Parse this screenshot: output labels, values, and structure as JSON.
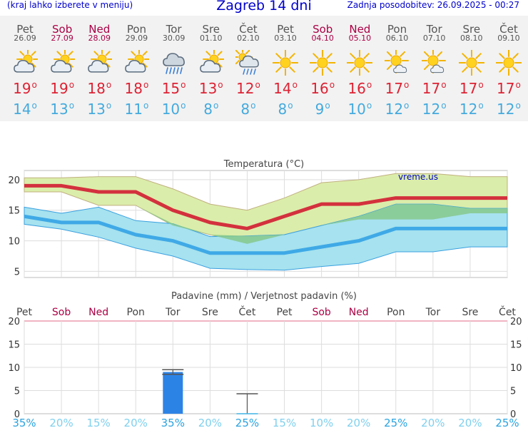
{
  "header": {
    "left": "(kraj lahko izberete v meniju)",
    "title": "Zagreb 14 dni",
    "right": "Zadnja posodobitev: 26.09.2025 - 00:27"
  },
  "days": [
    {
      "day": "Pet",
      "date": "26.09",
      "weekend": false,
      "icon": "partly-cloudy-icon",
      "max": "19",
      "min": "14"
    },
    {
      "day": "Sob",
      "date": "27.09",
      "weekend": true,
      "icon": "partly-cloudy-icon",
      "max": "19",
      "min": "13"
    },
    {
      "day": "Ned",
      "date": "28.09",
      "weekend": true,
      "icon": "partly-cloudy-icon",
      "max": "18",
      "min": "13"
    },
    {
      "day": "Pon",
      "date": "29.09",
      "weekend": false,
      "icon": "partly-cloudy-icon",
      "max": "18",
      "min": "11"
    },
    {
      "day": "Tor",
      "date": "30.09",
      "weekend": false,
      "icon": "rain-cloud-icon",
      "max": "15",
      "min": "10"
    },
    {
      "day": "Sre",
      "date": "01.10",
      "weekend": false,
      "icon": "partly-cloudy-icon",
      "max": "13",
      "min": "8"
    },
    {
      "day": "Čet",
      "date": "02.10",
      "weekend": false,
      "icon": "sun-showers-icon",
      "max": "12",
      "min": "8"
    },
    {
      "day": "Pet",
      "date": "03.10",
      "weekend": false,
      "icon": "sun-icon",
      "max": "14",
      "min": "8"
    },
    {
      "day": "Sob",
      "date": "04.10",
      "weekend": true,
      "icon": "sun-icon",
      "max": "16",
      "min": "9"
    },
    {
      "day": "Ned",
      "date": "05.10",
      "weekend": true,
      "icon": "sun-icon",
      "max": "16",
      "min": "10"
    },
    {
      "day": "Pon",
      "date": "06.10",
      "weekend": false,
      "icon": "sun-small-cloud-icon",
      "max": "17",
      "min": "12"
    },
    {
      "day": "Tor",
      "date": "07.10",
      "weekend": false,
      "icon": "sun-small-cloud-icon",
      "max": "17",
      "min": "12"
    },
    {
      "day": "Sre",
      "date": "08.10",
      "weekend": false,
      "icon": "sun-icon",
      "max": "17",
      "min": "12"
    },
    {
      "day": "Čet",
      "date": "09.10",
      "weekend": false,
      "icon": "sun-icon",
      "max": "17",
      "min": "12"
    }
  ],
  "colors": {
    "max_line": "#d3313d",
    "min_line": "#3fa9e6",
    "max_band": "#dbedaa",
    "min_band": "#a6e2ef",
    "overlap_band": "#86c88c",
    "rain_bar": "#2c83e6",
    "weekend_text": "#aa0044",
    "prob_text": "#3fb4e6"
  },
  "chart_data": [
    {
      "type": "line",
      "title": "Temperatura (°C)",
      "watermark": "vreme.us",
      "x": [
        "Pet",
        "Sob",
        "Ned",
        "Pon",
        "Tor",
        "Sre",
        "Čet",
        "Pet",
        "Sob",
        "Ned",
        "Pon",
        "Tor",
        "Sre",
        "Čet"
      ],
      "ylim": [
        4,
        21.5
      ],
      "yticks": [
        5,
        10,
        15,
        20
      ],
      "grid": true,
      "series": [
        {
          "role": "max",
          "values": [
            19,
            19,
            18,
            18,
            15,
            13,
            12,
            14,
            16,
            16,
            17,
            17,
            17,
            17
          ]
        },
        {
          "role": "max_band_high",
          "values": [
            20.3,
            20.3,
            20.5,
            20.5,
            18.5,
            16,
            15,
            17,
            19.5,
            20,
            21,
            21,
            20.5,
            20.5
          ]
        },
        {
          "role": "max_band_low",
          "values": [
            18,
            18,
            15.8,
            15.8,
            12.5,
            11,
            9.5,
            11,
            12.5,
            13.5,
            13.5,
            13.5,
            14.5,
            14.5
          ]
        },
        {
          "role": "min",
          "values": [
            14,
            13,
            13,
            11,
            10,
            8,
            8,
            8,
            9,
            10,
            12,
            12,
            12,
            12
          ]
        },
        {
          "role": "min_band_high",
          "values": [
            15.5,
            14.5,
            15.5,
            13.3,
            12.8,
            10.7,
            10.8,
            11,
            12.5,
            14,
            16,
            16,
            15.3,
            15.3
          ]
        },
        {
          "role": "min_band_low",
          "values": [
            12.7,
            11.9,
            10.6,
            8.8,
            7.5,
            5.5,
            5.3,
            5.2,
            5.8,
            6.3,
            8.2,
            8.2,
            9,
            9
          ]
        }
      ]
    },
    {
      "type": "bar",
      "title": "Padavine (mm) / Verjetnost padavin (%)",
      "categories": [
        "Pet",
        "Sob",
        "Ned",
        "Pon",
        "Tor",
        "Sre",
        "Čet",
        "Pet",
        "Sob",
        "Ned",
        "Pon",
        "Tor",
        "Sre",
        "Čet"
      ],
      "weekend": [
        false,
        true,
        true,
        false,
        false,
        false,
        false,
        false,
        true,
        true,
        false,
        false,
        false,
        false
      ],
      "values": [
        0,
        0,
        0,
        0,
        9,
        0,
        0,
        0,
        0,
        0,
        0,
        0,
        0,
        0
      ],
      "range_high": [
        0,
        0,
        0,
        0,
        9.5,
        0,
        4.3,
        0,
        0,
        0,
        0,
        0,
        0,
        0
      ],
      "range_low": [
        0,
        0,
        0,
        0,
        8.5,
        0,
        0,
        0,
        0,
        0,
        0,
        0,
        0,
        0
      ],
      "probability": [
        "35%",
        "20%",
        "15%",
        "20%",
        "35%",
        "20%",
        "25%",
        "15%",
        "10%",
        "20%",
        "25%",
        "20%",
        "20%",
        "25%"
      ],
      "probability_values": [
        35,
        20,
        15,
        20,
        35,
        20,
        25,
        15,
        10,
        20,
        25,
        20,
        20,
        25
      ],
      "ylim": [
        0,
        20
      ],
      "yticks": [
        0,
        5,
        10,
        15,
        20
      ],
      "grid": true
    }
  ]
}
